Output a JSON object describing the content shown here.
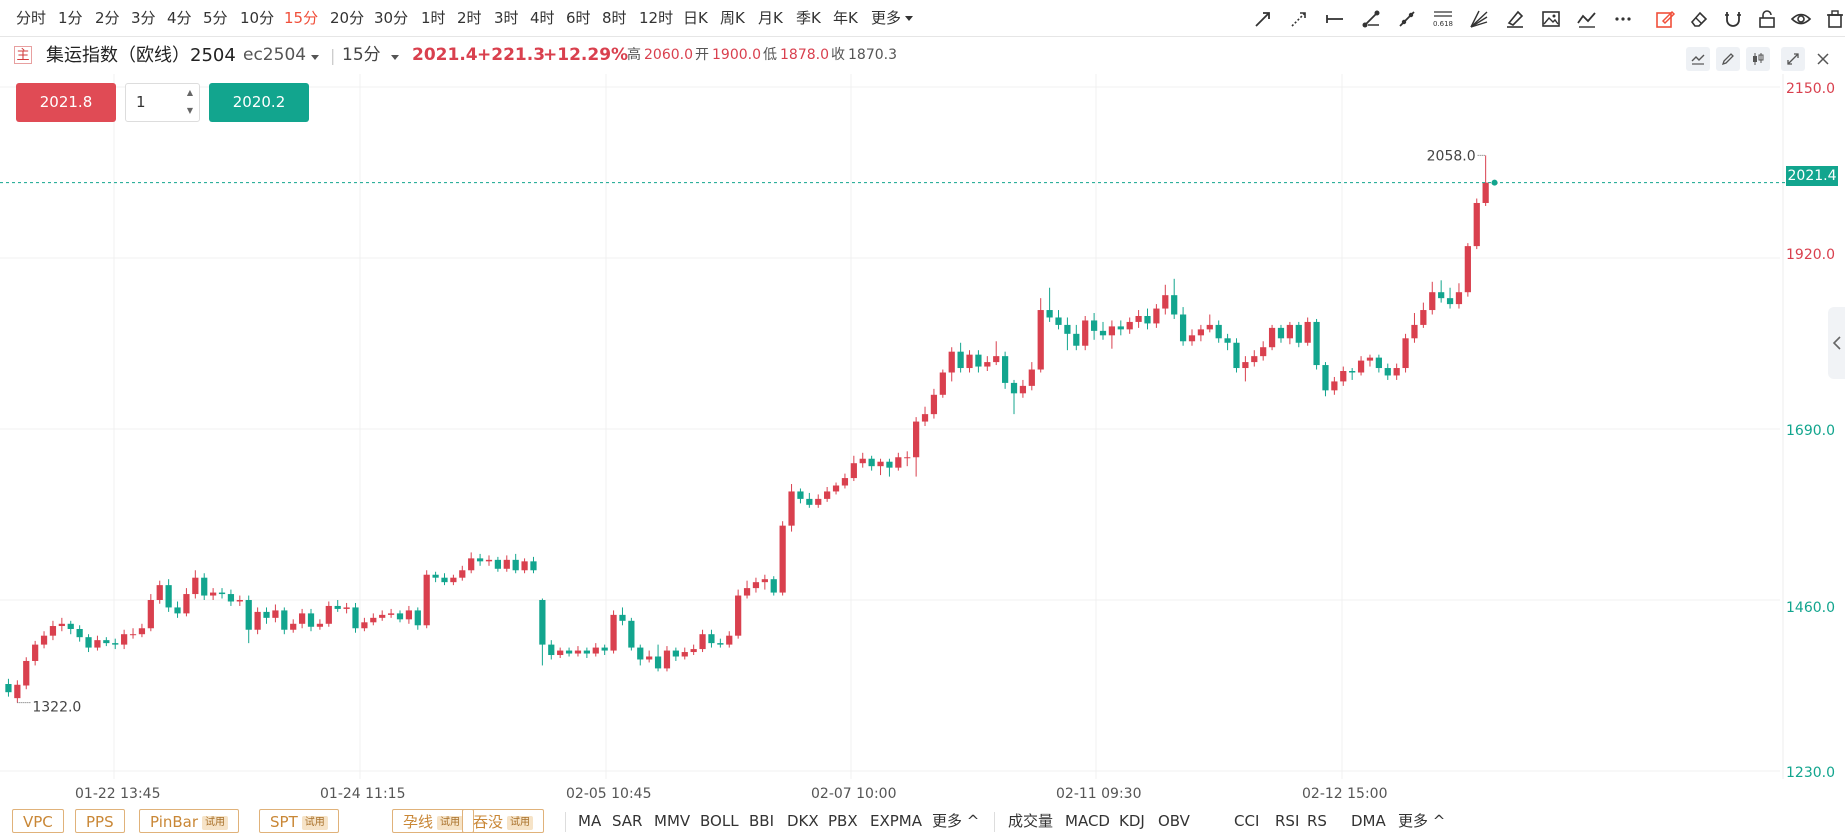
{
  "timeframes": [
    "分时",
    "1分",
    "2分",
    "3分",
    "4分",
    "5分",
    "10分",
    "15分",
    "20分",
    "30分",
    "1时",
    "2时",
    "3时",
    "4时",
    "6时",
    "8时",
    "12时",
    "日K",
    "周K",
    "月K",
    "季K",
    "年K",
    "更多"
  ],
  "active_timeframe": "15分",
  "drawing_tools": [
    "ray-arrow",
    "dashed-ray",
    "horizontal-line",
    "segment",
    "trend-line",
    "fibonacci",
    "gann-fan",
    "brush",
    "image",
    "polyline",
    "more",
    "edit-active",
    "eraser",
    "magnet",
    "lock",
    "eye",
    "trash"
  ],
  "fib_label": "0.618",
  "instrument": {
    "badge": "主",
    "name": "集运指数（欧线）2504",
    "code": "ec2504",
    "period": "15分",
    "last": "2021.4",
    "change": "+221.3",
    "change_pct": "+12.29%",
    "high_label": "高",
    "high": "2060.0",
    "open_label": "开",
    "open": "1900.0",
    "low_label": "低",
    "low": "1878.0",
    "close_label": "收",
    "close": "1870.3"
  },
  "order": {
    "sell_price": "2021.8",
    "quantity": "1",
    "buy_price": "2020.2"
  },
  "colors": {
    "up": "#d9404e",
    "down": "#12a58e",
    "active": "#f04f3a"
  },
  "y_axis": [
    "2150.0",
    "1920.0",
    "1690.0",
    "1460.0",
    "1230.0"
  ],
  "x_axis": [
    "01-22 13:45",
    "01-24 11:15",
    "02-05 10:45",
    "02-07 10:00",
    "02-11 09:30",
    "02-12 15:00"
  ],
  "current_price_tag": "2021.4",
  "high_marker": "2058.0",
  "low_marker": "1322.0",
  "signal_tags": [
    {
      "label": "VPC",
      "trial": ""
    },
    {
      "label": "PPS",
      "trial": ""
    },
    {
      "label": "PinBar",
      "trial": "试用"
    },
    {
      "label": "SPT",
      "trial": "试用"
    },
    {
      "label": "孕线",
      "trial": "试用"
    },
    {
      "label": "吞没",
      "trial": "试用"
    }
  ],
  "main_indicators": [
    "MA",
    "SAR",
    "MMV",
    "BOLL",
    "BBI",
    "DKX",
    "PBX",
    "EXPMA",
    "更多 ^"
  ],
  "sub_indicators": [
    "成交量",
    "MACD",
    "KDJ",
    "OBV",
    "CCI",
    "RSI",
    "RS",
    "DMA",
    "更多 ^"
  ],
  "chart_data": {
    "type": "candlestick",
    "title": "集运指数（欧线）2504 15分",
    "ylim": [
      1230,
      2150
    ],
    "y_ticks": [
      2150,
      1920,
      1690,
      1460,
      1230
    ],
    "x_ticks": [
      "01-22 13:45",
      "01-24 11:15",
      "02-05 10:45",
      "02-07 10:00",
      "02-11 09:30",
      "02-12 15:00"
    ],
    "last_price": 2021.4,
    "session_high": 2058.0,
    "session_low": 1322.0,
    "gap_after_index": 78,
    "candles": [
      [
        1347,
        1336,
        1354,
        1330
      ],
      [
        1328,
        1346,
        1352,
        1322
      ],
      [
        1345,
        1378,
        1383,
        1340
      ],
      [
        1378,
        1400,
        1405,
        1372
      ],
      [
        1400,
        1412,
        1418,
        1395
      ],
      [
        1412,
        1425,
        1432,
        1406
      ],
      [
        1425,
        1428,
        1436,
        1418
      ],
      [
        1428,
        1421,
        1432,
        1414
      ],
      [
        1421,
        1410,
        1426,
        1404
      ],
      [
        1410,
        1396,
        1414,
        1390
      ],
      [
        1396,
        1406,
        1412,
        1392
      ],
      [
        1406,
        1402,
        1410,
        1398
      ],
      [
        1402,
        1400,
        1408,
        1394
      ],
      [
        1400,
        1414,
        1420,
        1394
      ],
      [
        1414,
        1414,
        1422,
        1408
      ],
      [
        1414,
        1422,
        1428,
        1410
      ],
      [
        1422,
        1460,
        1468,
        1418
      ],
      [
        1460,
        1480,
        1486,
        1455
      ],
      [
        1480,
        1450,
        1488,
        1444
      ],
      [
        1450,
        1442,
        1458,
        1436
      ],
      [
        1442,
        1468,
        1476,
        1438
      ],
      [
        1468,
        1490,
        1500,
        1462
      ],
      [
        1490,
        1466,
        1496,
        1460
      ],
      [
        1466,
        1470,
        1476,
        1460
      ],
      [
        1470,
        1468,
        1476,
        1462
      ],
      [
        1468,
        1458,
        1474,
        1452
      ],
      [
        1458,
        1460,
        1466,
        1452
      ],
      [
        1460,
        1420,
        1466,
        1402
      ],
      [
        1420,
        1444,
        1450,
        1414
      ],
      [
        1444,
        1436,
        1450,
        1428
      ],
      [
        1436,
        1446,
        1454,
        1430
      ],
      [
        1446,
        1420,
        1450,
        1414
      ],
      [
        1420,
        1428,
        1434,
        1416
      ],
      [
        1428,
        1442,
        1448,
        1422
      ],
      [
        1442,
        1424,
        1448,
        1418
      ],
      [
        1424,
        1428,
        1434,
        1420
      ],
      [
        1428,
        1452,
        1458,
        1424
      ],
      [
        1452,
        1448,
        1460,
        1444
      ],
      [
        1448,
        1450,
        1456,
        1442
      ],
      [
        1450,
        1422,
        1456,
        1416
      ],
      [
        1422,
        1430,
        1436,
        1418
      ],
      [
        1430,
        1436,
        1442,
        1426
      ],
      [
        1436,
        1440,
        1446,
        1432
      ],
      [
        1440,
        1442,
        1448,
        1436
      ],
      [
        1442,
        1434,
        1446,
        1430
      ],
      [
        1434,
        1446,
        1452,
        1428
      ],
      [
        1446,
        1426,
        1450,
        1420
      ],
      [
        1426,
        1494,
        1500,
        1422
      ],
      [
        1494,
        1490,
        1498,
        1484
      ],
      [
        1490,
        1484,
        1496,
        1480
      ],
      [
        1484,
        1490,
        1494,
        1480
      ],
      [
        1490,
        1500,
        1506,
        1486
      ],
      [
        1500,
        1516,
        1524,
        1496
      ],
      [
        1516,
        1512,
        1522,
        1506
      ],
      [
        1512,
        1514,
        1520,
        1506
      ],
      [
        1514,
        1502,
        1518,
        1498
      ],
      [
        1502,
        1514,
        1520,
        1498
      ],
      [
        1514,
        1500,
        1522,
        1496
      ],
      [
        1500,
        1512,
        1516,
        1496
      ],
      [
        1512,
        1500,
        1518,
        1496
      ],
      [
        1460,
        1400,
        1462,
        1372
      ],
      [
        1400,
        1386,
        1406,
        1380
      ],
      [
        1386,
        1392,
        1396,
        1382
      ],
      [
        1392,
        1388,
        1396,
        1384
      ],
      [
        1388,
        1392,
        1398,
        1384
      ],
      [
        1392,
        1388,
        1396,
        1382
      ],
      [
        1388,
        1396,
        1402,
        1384
      ],
      [
        1396,
        1392,
        1400,
        1386
      ],
      [
        1392,
        1440,
        1446,
        1388
      ],
      [
        1440,
        1432,
        1450,
        1426
      ],
      [
        1432,
        1396,
        1436,
        1392
      ],
      [
        1396,
        1380,
        1400,
        1372
      ],
      [
        1380,
        1384,
        1392,
        1376
      ],
      [
        1384,
        1368,
        1400,
        1364
      ],
      [
        1368,
        1392,
        1398,
        1364
      ],
      [
        1392,
        1384,
        1396,
        1378
      ],
      [
        1384,
        1390,
        1396,
        1380
      ],
      [
        1390,
        1394,
        1400,
        1386
      ],
      [
        1394,
        1414,
        1420,
        1390
      ],
      [
        1414,
        1402,
        1420,
        1396
      ],
      [
        1402,
        1400,
        1408,
        1396
      ],
      [
        1400,
        1412,
        1418,
        1396
      ],
      [
        1412,
        1466,
        1474,
        1408
      ],
      [
        1466,
        1476,
        1486,
        1462
      ],
      [
        1476,
        1484,
        1490,
        1470
      ],
      [
        1484,
        1488,
        1494,
        1474
      ],
      [
        1488,
        1470,
        1492,
        1466
      ],
      [
        1470,
        1560,
        1566,
        1466
      ],
      [
        1560,
        1606,
        1616,
        1552
      ],
      [
        1606,
        1596,
        1610,
        1590
      ],
      [
        1596,
        1588,
        1604,
        1584
      ],
      [
        1588,
        1596,
        1602,
        1584
      ],
      [
        1596,
        1606,
        1612,
        1592
      ],
      [
        1606,
        1614,
        1618,
        1602
      ],
      [
        1614,
        1624,
        1630,
        1610
      ],
      [
        1624,
        1644,
        1654,
        1620
      ],
      [
        1644,
        1650,
        1658,
        1638
      ],
      [
        1650,
        1640,
        1654,
        1634
      ],
      [
        1640,
        1646,
        1650,
        1628
      ],
      [
        1646,
        1638,
        1650,
        1626
      ],
      [
        1638,
        1652,
        1658,
        1634
      ],
      [
        1652,
        1652,
        1660,
        1640
      ],
      [
        1652,
        1700,
        1706,
        1626
      ],
      [
        1700,
        1710,
        1720,
        1694
      ],
      [
        1710,
        1736,
        1744,
        1704
      ],
      [
        1736,
        1766,
        1770,
        1732
      ],
      [
        1766,
        1794,
        1800,
        1754
      ],
      [
        1794,
        1772,
        1806,
        1766
      ],
      [
        1772,
        1790,
        1796,
        1766
      ],
      [
        1790,
        1774,
        1796,
        1766
      ],
      [
        1774,
        1780,
        1788,
        1768
      ],
      [
        1780,
        1788,
        1808,
        1776
      ],
      [
        1788,
        1752,
        1794,
        1744
      ],
      [
        1752,
        1738,
        1756,
        1710
      ],
      [
        1738,
        1748,
        1756,
        1732
      ],
      [
        1748,
        1770,
        1780,
        1742
      ],
      [
        1770,
        1850,
        1866,
        1766
      ],
      [
        1850,
        1840,
        1880,
        1834
      ],
      [
        1840,
        1830,
        1850,
        1824
      ],
      [
        1830,
        1818,
        1840,
        1796
      ],
      [
        1818,
        1802,
        1830,
        1796
      ],
      [
        1802,
        1836,
        1842,
        1796
      ],
      [
        1836,
        1822,
        1846,
        1810
      ],
      [
        1822,
        1816,
        1834,
        1810
      ],
      [
        1816,
        1828,
        1836,
        1798
      ],
      [
        1828,
        1824,
        1836,
        1816
      ],
      [
        1824,
        1834,
        1840,
        1818
      ],
      [
        1834,
        1842,
        1850,
        1826
      ],
      [
        1842,
        1832,
        1852,
        1824
      ],
      [
        1832,
        1852,
        1858,
        1826
      ],
      [
        1852,
        1870,
        1884,
        1844
      ],
      [
        1870,
        1844,
        1892,
        1838
      ],
      [
        1844,
        1808,
        1854,
        1802
      ],
      [
        1808,
        1816,
        1824,
        1802
      ],
      [
        1816,
        1824,
        1830,
        1808
      ],
      [
        1824,
        1830,
        1844,
        1820
      ],
      [
        1830,
        1812,
        1836,
        1806
      ],
      [
        1812,
        1806,
        1818,
        1796
      ],
      [
        1806,
        1772,
        1812,
        1766
      ],
      [
        1772,
        1780,
        1788,
        1754
      ],
      [
        1780,
        1788,
        1796,
        1774
      ],
      [
        1788,
        1800,
        1808,
        1782
      ],
      [
        1800,
        1826,
        1830,
        1796
      ],
      [
        1826,
        1812,
        1830,
        1806
      ],
      [
        1812,
        1830,
        1834,
        1804
      ],
      [
        1830,
        1806,
        1834,
        1800
      ],
      [
        1806,
        1834,
        1840,
        1802
      ],
      [
        1834,
        1776,
        1838,
        1770
      ],
      [
        1776,
        1742,
        1780,
        1734
      ],
      [
        1742,
        1754,
        1760,
        1736
      ],
      [
        1754,
        1768,
        1774,
        1748
      ],
      [
        1768,
        1766,
        1772,
        1756
      ],
      [
        1766,
        1782,
        1788,
        1762
      ],
      [
        1782,
        1786,
        1790,
        1774
      ],
      [
        1786,
        1772,
        1790,
        1766
      ],
      [
        1772,
        1762,
        1778,
        1756
      ],
      [
        1762,
        1772,
        1778,
        1756
      ],
      [
        1772,
        1812,
        1818,
        1766
      ],
      [
        1812,
        1830,
        1846,
        1806
      ],
      [
        1830,
        1850,
        1860,
        1826
      ],
      [
        1850,
        1874,
        1888,
        1844
      ],
      [
        1874,
        1866,
        1890,
        1860
      ],
      [
        1866,
        1858,
        1880,
        1852
      ],
      [
        1858,
        1874,
        1886,
        1852
      ],
      [
        1874,
        1936,
        1940,
        1868
      ],
      [
        1936,
        1994,
        2000,
        1932
      ],
      [
        1994,
        2021.4,
        2058,
        1990
      ],
      [
        2021.4,
        2021.4,
        2021.4,
        2021.4
      ]
    ]
  }
}
